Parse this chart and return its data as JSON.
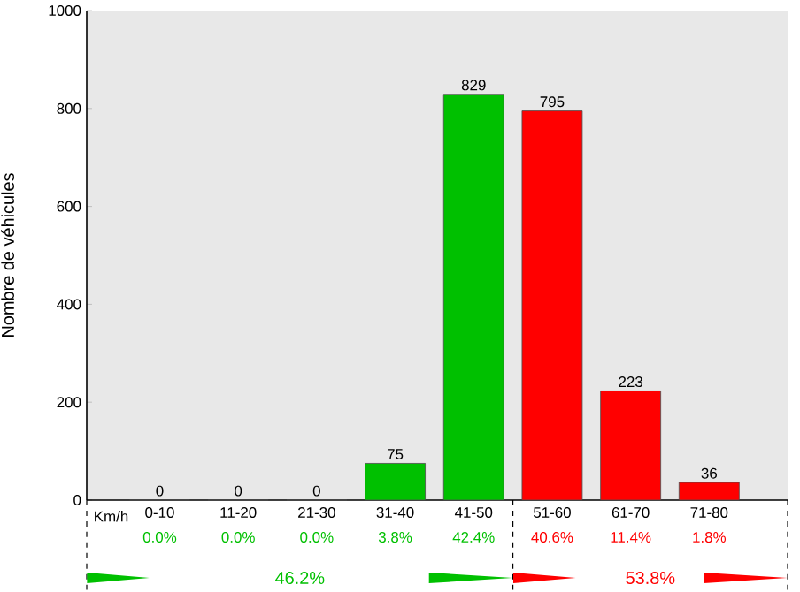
{
  "chart_data": {
    "type": "bar",
    "ylabel": "Nombre de véhicules",
    "xlabel": "Km/h",
    "categories": [
      "0-10",
      "11-20",
      "21-30",
      "31-40",
      "41-50",
      "51-60",
      "61-70",
      "71-80"
    ],
    "values": [
      0,
      0,
      0,
      75,
      829,
      795,
      223,
      36
    ],
    "colors": [
      "#00c000",
      "#00c000",
      "#00c000",
      "#00c000",
      "#00c000",
      "#ff0000",
      "#ff0000",
      "#ff0000"
    ],
    "ylim": [
      0,
      1000
    ],
    "yticks": [
      0,
      200,
      400,
      600,
      800,
      1000
    ],
    "data_labels": true,
    "annotations": [
      "0.0%",
      "0.0%",
      "0.0%",
      "3.8%",
      "42.4%",
      "40.6%",
      "11.4%",
      "1.8%",
      "46.2%",
      "53.8%"
    ]
  }
}
